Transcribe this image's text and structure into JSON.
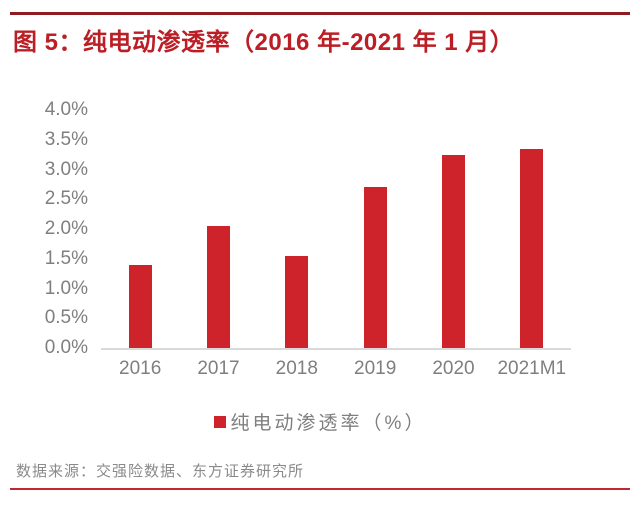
{
  "header": {
    "title": "图 5：纯电动渗透率（2016 年-2021 年 1 月）"
  },
  "footer": {
    "source": "数据来源：交强险数据、东方证券研究所"
  },
  "colors": {
    "bar": "#cf232b",
    "title": "#bb1e24",
    "top_rule": "#8e1d21",
    "bottom_rule": "#c2272d",
    "axis_text": "#7f7f7f",
    "axis_line": "#d9d9d9"
  },
  "chart_data": {
    "type": "bar",
    "title": "图 5：纯电动渗透率（2016 年-2021 年 1 月）",
    "categories": [
      "2016",
      "2017",
      "2018",
      "2019",
      "2020",
      "2021M1"
    ],
    "values": [
      1.4,
      2.05,
      1.55,
      2.7,
      3.25,
      3.35
    ],
    "unit": "%",
    "ylabel": "",
    "xlabel": "",
    "ylim": [
      0,
      4
    ],
    "ytick_step": 0.5,
    "ytick_labels": [
      "4.0%",
      "3.5%",
      "3.0%",
      "2.5%",
      "2.0%",
      "1.5%",
      "1.0%",
      "0.5%",
      "0.0%"
    ],
    "legend": "纯电动渗透率（%）",
    "legend_position": "bottom",
    "grid": false,
    "bar_color": "#cf232b"
  }
}
